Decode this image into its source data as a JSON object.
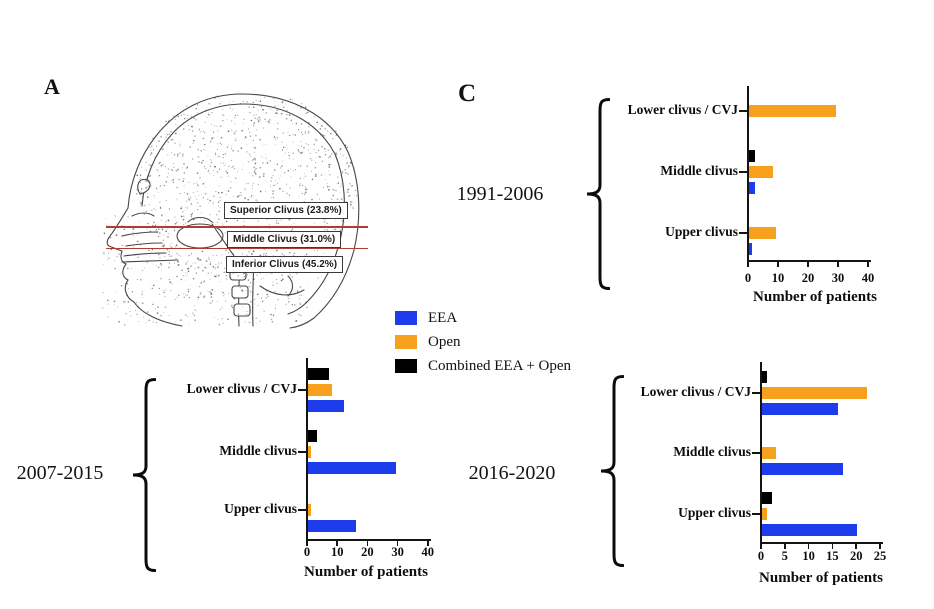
{
  "panels": {
    "a_label": "A",
    "c_label": "C"
  },
  "panel_a": {
    "line_color": "#b23b35",
    "regions": [
      {
        "label": "Superior Clivus (23.8%)",
        "percent": 23.8
      },
      {
        "label": "Middle Clivus (31.0%)",
        "percent": 31.0
      },
      {
        "label": "Inferior Clivus (45.2%)",
        "percent": 45.2
      }
    ]
  },
  "legend": {
    "items": [
      {
        "label": "EEA",
        "color": "#1d3ceb"
      },
      {
        "label": "Open",
        "color": "#f7a01e"
      },
      {
        "label": "Combined EEA + Open",
        "color": "#000000"
      }
    ]
  },
  "chart_data": [
    {
      "type": "bar",
      "orientation": "horizontal",
      "period": "1991-2006",
      "xlabel": "Number of patients",
      "xticks": [
        0,
        10,
        20,
        30,
        40
      ],
      "xlim": [
        0,
        40
      ],
      "grid": false,
      "categories": [
        "Lower clivus / CVJ",
        "Middle clivus",
        "Upper clivus"
      ],
      "series": [
        {
          "name": "Combined EEA + Open",
          "color": "#000000",
          "values": [
            0,
            2,
            0
          ]
        },
        {
          "name": "Open",
          "color": "#f7a01e",
          "values": [
            29,
            8,
            9
          ]
        },
        {
          "name": "EEA",
          "color": "#1d3ceb",
          "values": [
            0,
            2,
            1
          ]
        }
      ]
    },
    {
      "type": "bar",
      "orientation": "horizontal",
      "period": "2007-2015",
      "xlabel": "Number of patients",
      "xticks": [
        0,
        10,
        20,
        30,
        40
      ],
      "xlim": [
        0,
        40
      ],
      "grid": false,
      "categories": [
        "Lower clivus / CVJ",
        "Middle clivus",
        "Upper clivus"
      ],
      "series": [
        {
          "name": "Combined EEA + Open",
          "color": "#000000",
          "values": [
            7,
            3,
            0
          ]
        },
        {
          "name": "Open",
          "color": "#f7a01e",
          "values": [
            8,
            1,
            1
          ]
        },
        {
          "name": "EEA",
          "color": "#1d3ceb",
          "values": [
            12,
            29,
            16
          ]
        }
      ]
    },
    {
      "type": "bar",
      "orientation": "horizontal",
      "period": "2016-2020",
      "xlabel": "Number of patients",
      "xticks": [
        0,
        5,
        10,
        15,
        20,
        25
      ],
      "xlim": [
        0,
        25
      ],
      "grid": false,
      "categories": [
        "Lower clivus / CVJ",
        "Middle clivus",
        "Upper clivus"
      ],
      "series": [
        {
          "name": "Combined EEA + Open",
          "color": "#000000",
          "values": [
            1,
            0,
            2
          ]
        },
        {
          "name": "Open",
          "color": "#f7a01e",
          "values": [
            22,
            3,
            1
          ]
        },
        {
          "name": "EEA",
          "color": "#1d3ceb",
          "values": [
            16,
            17,
            20
          ]
        }
      ]
    }
  ]
}
